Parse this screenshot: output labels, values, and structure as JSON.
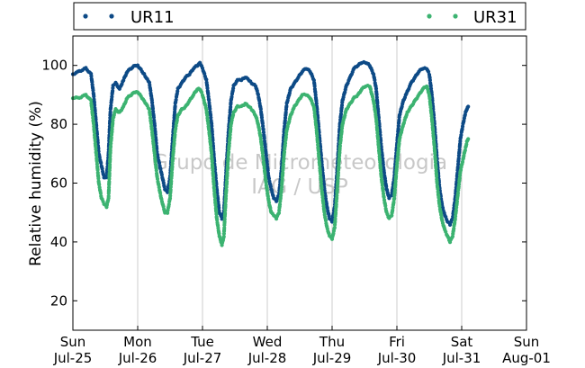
{
  "chart_data": {
    "type": "scatter",
    "ylabel": "Relative humidity (%)",
    "ylim": [
      10,
      110
    ],
    "yticks": [
      20,
      40,
      60,
      80,
      100
    ],
    "xlim": [
      0,
      7
    ],
    "xticks": [
      {
        "x": 0,
        "weekday": "Sun",
        "date": "Jul-25"
      },
      {
        "x": 1,
        "weekday": "Mon",
        "date": "Jul-26"
      },
      {
        "x": 2,
        "weekday": "Tue",
        "date": "Jul-27"
      },
      {
        "x": 3,
        "weekday": "Wed",
        "date": "Jul-28"
      },
      {
        "x": 4,
        "weekday": "Thu",
        "date": "Jul-29"
      },
      {
        "x": 5,
        "weekday": "Fri",
        "date": "Jul-30"
      },
      {
        "x": 6,
        "weekday": "Sat",
        "date": "Jul-31"
      },
      {
        "x": 7,
        "weekday": "Sun",
        "date": "Aug-01"
      }
    ],
    "grid": "vertical",
    "legend_position": "top, outside plot",
    "watermark": [
      "Grupo de Micrometeorologia",
      "IAG / USP"
    ],
    "series": [
      {
        "name": "UR11",
        "color": "#0d4a86",
        "points": [
          [
            0.0,
            97
          ],
          [
            0.1,
            98
          ],
          [
            0.2,
            99
          ],
          [
            0.28,
            97
          ],
          [
            0.32,
            90
          ],
          [
            0.36,
            80
          ],
          [
            0.4,
            70
          ],
          [
            0.44,
            66
          ],
          [
            0.48,
            62
          ],
          [
            0.52,
            62
          ],
          [
            0.55,
            70
          ],
          [
            0.58,
            85
          ],
          [
            0.62,
            93
          ],
          [
            0.66,
            94
          ],
          [
            0.72,
            92
          ],
          [
            0.78,
            95
          ],
          [
            0.84,
            98
          ],
          [
            0.9,
            99
          ],
          [
            0.96,
            100
          ],
          [
            1.0,
            100
          ],
          [
            1.1,
            97
          ],
          [
            1.18,
            94
          ],
          [
            1.22,
            88
          ],
          [
            1.26,
            80
          ],
          [
            1.3,
            70
          ],
          [
            1.36,
            64
          ],
          [
            1.42,
            58
          ],
          [
            1.46,
            57
          ],
          [
            1.5,
            62
          ],
          [
            1.54,
            75
          ],
          [
            1.58,
            87
          ],
          [
            1.62,
            92
          ],
          [
            1.68,
            94
          ],
          [
            1.74,
            96
          ],
          [
            1.8,
            97
          ],
          [
            1.86,
            99
          ],
          [
            1.92,
            100
          ],
          [
            1.96,
            101
          ],
          [
            2.0,
            99
          ],
          [
            2.06,
            95
          ],
          [
            2.1,
            88
          ],
          [
            2.14,
            80
          ],
          [
            2.18,
            68
          ],
          [
            2.22,
            58
          ],
          [
            2.26,
            50
          ],
          [
            2.3,
            48
          ],
          [
            2.33,
            50
          ],
          [
            2.36,
            62
          ],
          [
            2.4,
            77
          ],
          [
            2.44,
            88
          ],
          [
            2.48,
            93
          ],
          [
            2.54,
            95
          ],
          [
            2.6,
            95
          ],
          [
            2.66,
            96
          ],
          [
            2.72,
            95
          ],
          [
            2.76,
            94
          ],
          [
            2.82,
            93
          ],
          [
            2.86,
            90
          ],
          [
            2.9,
            85
          ],
          [
            2.94,
            78
          ],
          [
            2.98,
            70
          ],
          [
            3.02,
            62
          ],
          [
            3.06,
            58
          ],
          [
            3.1,
            55
          ],
          [
            3.14,
            54
          ],
          [
            3.18,
            56
          ],
          [
            3.22,
            65
          ],
          [
            3.26,
            78
          ],
          [
            3.3,
            87
          ],
          [
            3.36,
            92
          ],
          [
            3.42,
            94
          ],
          [
            3.48,
            96
          ],
          [
            3.54,
            98
          ],
          [
            3.6,
            99
          ],
          [
            3.66,
            98
          ],
          [
            3.72,
            95
          ],
          [
            3.76,
            87
          ],
          [
            3.8,
            77
          ],
          [
            3.84,
            67
          ],
          [
            3.88,
            58
          ],
          [
            3.92,
            52
          ],
          [
            3.96,
            48
          ],
          [
            4.0,
            47
          ],
          [
            4.04,
            52
          ],
          [
            4.08,
            65
          ],
          [
            4.12,
            80
          ],
          [
            4.16,
            88
          ],
          [
            4.22,
            93
          ],
          [
            4.28,
            96
          ],
          [
            4.34,
            99
          ],
          [
            4.4,
            100
          ],
          [
            4.46,
            101
          ],
          [
            4.52,
            101
          ],
          [
            4.58,
            100
          ],
          [
            4.64,
            97
          ],
          [
            4.68,
            92
          ],
          [
            4.72,
            82
          ],
          [
            4.76,
            72
          ],
          [
            4.8,
            64
          ],
          [
            4.84,
            58
          ],
          [
            4.88,
            55
          ],
          [
            4.92,
            56
          ],
          [
            4.96,
            62
          ],
          [
            5.0,
            73
          ],
          [
            5.04,
            83
          ],
          [
            5.1,
            88
          ],
          [
            5.16,
            91
          ],
          [
            5.22,
            94
          ],
          [
            5.28,
            96
          ],
          [
            5.34,
            98
          ],
          [
            5.4,
            99
          ],
          [
            5.46,
            99
          ],
          [
            5.5,
            97
          ],
          [
            5.54,
            90
          ],
          [
            5.58,
            80
          ],
          [
            5.62,
            68
          ],
          [
            5.66,
            58
          ],
          [
            5.7,
            52
          ],
          [
            5.74,
            49
          ],
          [
            5.78,
            47
          ],
          [
            5.82,
            46
          ],
          [
            5.86,
            48
          ],
          [
            5.9,
            55
          ],
          [
            5.94,
            65
          ],
          [
            5.98,
            75
          ],
          [
            6.02,
            80
          ],
          [
            6.06,
            84
          ],
          [
            6.08,
            85
          ],
          [
            6.1,
            86
          ]
        ]
      },
      {
        "name": "UR31",
        "color": "#3cb371",
        "points": [
          [
            0.0,
            89
          ],
          [
            0.1,
            89
          ],
          [
            0.2,
            90
          ],
          [
            0.28,
            88
          ],
          [
            0.32,
            80
          ],
          [
            0.36,
            70
          ],
          [
            0.4,
            60
          ],
          [
            0.44,
            55
          ],
          [
            0.48,
            53
          ],
          [
            0.52,
            52
          ],
          [
            0.55,
            55
          ],
          [
            0.58,
            72
          ],
          [
            0.62,
            82
          ],
          [
            0.66,
            85
          ],
          [
            0.72,
            84
          ],
          [
            0.78,
            86
          ],
          [
            0.84,
            89
          ],
          [
            0.9,
            90
          ],
          [
            0.96,
            91
          ],
          [
            1.0,
            91
          ],
          [
            1.1,
            88
          ],
          [
            1.18,
            85
          ],
          [
            1.22,
            78
          ],
          [
            1.26,
            70
          ],
          [
            1.3,
            62
          ],
          [
            1.36,
            55
          ],
          [
            1.42,
            50
          ],
          [
            1.46,
            50
          ],
          [
            1.5,
            55
          ],
          [
            1.54,
            68
          ],
          [
            1.58,
            78
          ],
          [
            1.62,
            83
          ],
          [
            1.68,
            85
          ],
          [
            1.74,
            86
          ],
          [
            1.8,
            88
          ],
          [
            1.86,
            90
          ],
          [
            1.92,
            92
          ],
          [
            1.96,
            92
          ],
          [
            2.0,
            90
          ],
          [
            2.06,
            85
          ],
          [
            2.1,
            78
          ],
          [
            2.14,
            70
          ],
          [
            2.18,
            58
          ],
          [
            2.22,
            48
          ],
          [
            2.26,
            42
          ],
          [
            2.3,
            39
          ],
          [
            2.33,
            42
          ],
          [
            2.36,
            55
          ],
          [
            2.4,
            70
          ],
          [
            2.44,
            80
          ],
          [
            2.48,
            84
          ],
          [
            2.54,
            86
          ],
          [
            2.6,
            86
          ],
          [
            2.66,
            87
          ],
          [
            2.72,
            86
          ],
          [
            2.76,
            85
          ],
          [
            2.82,
            83
          ],
          [
            2.86,
            80
          ],
          [
            2.9,
            75
          ],
          [
            2.94,
            68
          ],
          [
            2.98,
            60
          ],
          [
            3.02,
            54
          ],
          [
            3.06,
            50
          ],
          [
            3.1,
            49
          ],
          [
            3.14,
            48
          ],
          [
            3.18,
            50
          ],
          [
            3.22,
            58
          ],
          [
            3.26,
            70
          ],
          [
            3.3,
            78
          ],
          [
            3.36,
            83
          ],
          [
            3.42,
            86
          ],
          [
            3.48,
            88
          ],
          [
            3.54,
            90
          ],
          [
            3.6,
            90
          ],
          [
            3.66,
            89
          ],
          [
            3.72,
            86
          ],
          [
            3.76,
            78
          ],
          [
            3.8,
            68
          ],
          [
            3.84,
            58
          ],
          [
            3.88,
            50
          ],
          [
            3.92,
            45
          ],
          [
            3.96,
            42
          ],
          [
            4.0,
            41
          ],
          [
            4.04,
            45
          ],
          [
            4.08,
            58
          ],
          [
            4.12,
            72
          ],
          [
            4.16,
            80
          ],
          [
            4.22,
            85
          ],
          [
            4.28,
            87
          ],
          [
            4.34,
            89
          ],
          [
            4.4,
            90
          ],
          [
            4.46,
            92
          ],
          [
            4.52,
            93
          ],
          [
            4.58,
            93
          ],
          [
            4.64,
            88
          ],
          [
            4.68,
            82
          ],
          [
            4.72,
            72
          ],
          [
            4.76,
            62
          ],
          [
            4.8,
            55
          ],
          [
            4.84,
            50
          ],
          [
            4.88,
            48
          ],
          [
            4.92,
            49
          ],
          [
            4.96,
            55
          ],
          [
            5.0,
            66
          ],
          [
            5.04,
            75
          ],
          [
            5.1,
            80
          ],
          [
            5.16,
            84
          ],
          [
            5.22,
            86
          ],
          [
            5.28,
            88
          ],
          [
            5.34,
            90
          ],
          [
            5.4,
            92
          ],
          [
            5.46,
            93
          ],
          [
            5.5,
            90
          ],
          [
            5.54,
            82
          ],
          [
            5.58,
            72
          ],
          [
            5.62,
            60
          ],
          [
            5.66,
            52
          ],
          [
            5.7,
            47
          ],
          [
            5.74,
            44
          ],
          [
            5.78,
            42
          ],
          [
            5.82,
            40
          ],
          [
            5.86,
            42
          ],
          [
            5.9,
            48
          ],
          [
            5.94,
            56
          ],
          [
            5.98,
            64
          ],
          [
            6.02,
            68
          ],
          [
            6.06,
            72
          ],
          [
            6.08,
            74
          ],
          [
            6.1,
            75
          ]
        ]
      }
    ]
  }
}
